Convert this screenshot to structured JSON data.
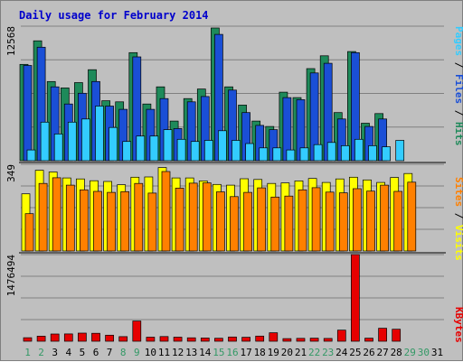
{
  "title": "Daily usage for February 2014",
  "colors": {
    "background": "#bfbfbf",
    "panel": "#bfbfbf",
    "title": "#0000cc",
    "separator": "#000000",
    "weekday": "#006633",
    "weekend": "#339966",
    "pages": "#33ccff",
    "files": "#1a4fd6",
    "hits": "#1e8a5a",
    "sites": "#ff8000",
    "visits": "#ffff00",
    "kbytes": "#e60000"
  },
  "side_labels": {
    "hits_panel": [
      {
        "text": "Pages",
        "color": "#33ccff"
      },
      {
        "text": " / ",
        "color": "#000000"
      },
      {
        "text": "Files",
        "color": "#1a4fd6"
      },
      {
        "text": " / ",
        "color": "#000000"
      },
      {
        "text": "Hits",
        "color": "#1e8a5a"
      }
    ],
    "visits_panel": [
      {
        "text": "Sites",
        "color": "#ff8000"
      },
      {
        "text": " / ",
        "color": "#000000"
      },
      {
        "text": "Visits",
        "color": "#ffff00"
      }
    ],
    "kbytes_panel": [
      {
        "text": "KBytes",
        "color": "#e60000"
      }
    ]
  },
  "chart_data": {
    "type": "bar",
    "title": "Daily usage for February 2014",
    "days": [
      "1",
      "2",
      "3",
      "4",
      "5",
      "6",
      "7",
      "8",
      "9",
      "10",
      "11",
      "12",
      "13",
      "14",
      "15",
      "16",
      "17",
      "18",
      "19",
      "20",
      "21",
      "22",
      "23",
      "24",
      "25",
      "26",
      "27",
      "28",
      "29",
      "30",
      "31"
    ],
    "weekend_days": [
      "1",
      "2",
      "8",
      "9",
      "15",
      "16",
      "22",
      "23",
      "29",
      "30"
    ],
    "panels": [
      {
        "name": "hits",
        "ymax": 12568,
        "ytick_label": "12568",
        "series": [
          {
            "name": "Hits",
            "values": [
              9000,
              11200,
              7400,
              6800,
              7300,
              8500,
              5600,
              5500,
              10100,
              5300,
              6900,
              3700,
              5800,
              6700,
              12400,
              6900,
              5200,
              3700,
              3200,
              6400,
              5900,
              8600,
              9800,
              4500,
              10200,
              3500,
              4400,
              0,
              0,
              0,
              0
            ]
          },
          {
            "name": "Files",
            "values": [
              8900,
              10600,
              6900,
              5300,
              6300,
              7400,
              5100,
              4800,
              9700,
              4800,
              5800,
              3000,
              5500,
              6000,
              11800,
              6600,
              4500,
              3300,
              2900,
              5900,
              5700,
              8200,
              9100,
              3900,
              10100,
              3200,
              3900,
              0,
              0,
              0,
              0
            ]
          },
          {
            "name": "Pages",
            "values": [
              1000,
              3600,
              2500,
              3600,
              3900,
              5100,
              3100,
              1800,
              2300,
              2300,
              2900,
              2000,
              1800,
              1900,
              2800,
              1900,
              1600,
              1200,
              1200,
              1000,
              1200,
              1500,
              1700,
              1400,
              2000,
              1400,
              1300,
              1900,
              0,
              0,
              0
            ]
          }
        ]
      },
      {
        "name": "visits",
        "ymax": 349,
        "ytick_label": "349",
        "series": [
          {
            "name": "Visits",
            "values": [
              230,
              325,
              318,
              294,
              290,
              283,
              280,
              267,
              297,
              298,
              336,
              294,
              294,
              282,
              268,
              265,
              291,
              288,
              272,
              274,
              282,
              292,
              276,
              290,
              297,
              286,
              276,
              296,
              312,
              0,
              0
            ]
          },
          {
            "name": "Sites",
            "values": [
              150,
              272,
              295,
              265,
              246,
              240,
              236,
              239,
              272,
              233,
              320,
              253,
              273,
              274,
              238,
              219,
              236,
              254,
              217,
              221,
              246,
              255,
              237,
              234,
              251,
              241,
              265,
              240,
              277,
              0,
              0
            ]
          }
        ]
      },
      {
        "name": "kbytes",
        "ymax": 1476494,
        "ytick_label": "1476494",
        "series": [
          {
            "name": "KBytes",
            "values": [
              60000,
              86000,
              123000,
              125000,
              139000,
              136000,
              103000,
              78000,
              345000,
              69000,
              80000,
              69000,
              58000,
              56000,
              51000,
              73000,
              68000,
              87000,
              144000,
              44000,
              49000,
              53000,
              47000,
              189000,
              1476494,
              52000,
              222000,
              205000,
              0,
              0,
              0
            ]
          }
        ]
      }
    ]
  }
}
